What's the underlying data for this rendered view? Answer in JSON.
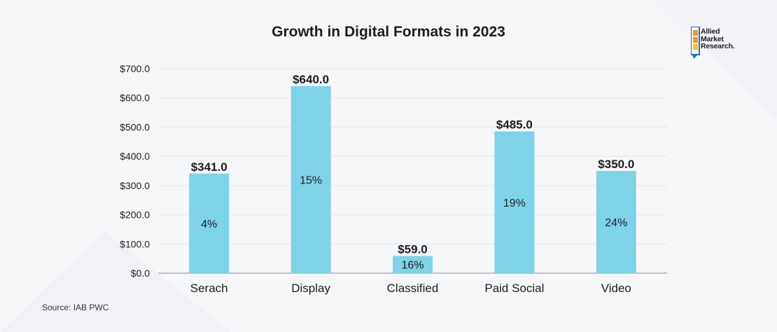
{
  "colors": {
    "bar": "#7fd3e8",
    "grid": "#e3e6ea",
    "axis": "#8a8f96",
    "text": "#1d1d1f",
    "logo_blue": "#1f6fd1",
    "logo_orange": "#f39a1f",
    "logo_yellow": "#f5c518"
  },
  "logo": {
    "icon": "allied-market-research-logo",
    "lines": [
      "Allied",
      "Market",
      "Research."
    ]
  },
  "source": "Source: IAB PWC",
  "chart_data": {
    "type": "bar",
    "title": "Growth in Digital Formats in 2023",
    "xlabel": "",
    "ylabel": "",
    "categories": [
      "Serach",
      "Display",
      "Classified",
      "Paid Social",
      "Video"
    ],
    "values": [
      341.0,
      640.0,
      59.0,
      485.0,
      350.0
    ],
    "value_labels": [
      "$341.0",
      "$640.0",
      "$59.0",
      "$485.0",
      "$350.0"
    ],
    "inner_labels": [
      "4%",
      "15%",
      "16%",
      "19%",
      "24%"
    ],
    "ylim": [
      0,
      700
    ],
    "yticks": [
      "$0.0",
      "$100.0",
      "$200.0",
      "$300.0",
      "$400.0",
      "$500.0",
      "$600.0",
      "$700.0"
    ],
    "grid": true,
    "legend": "none"
  }
}
